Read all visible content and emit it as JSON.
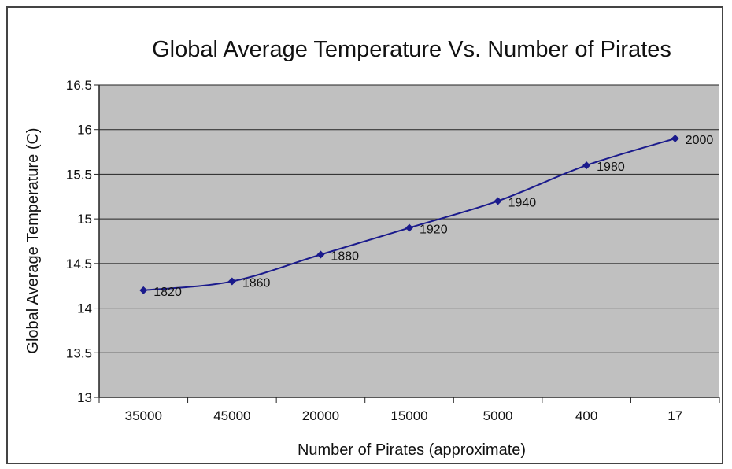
{
  "chart_data": {
    "type": "line",
    "title": "Global Average Temperature Vs. Number of Pirates",
    "xlabel": "Number of Pirates (approximate)",
    "ylabel": "Global Average Temperature (C)",
    "categories": [
      "35000",
      "45000",
      "20000",
      "15000",
      "5000",
      "400",
      "17"
    ],
    "series": [
      {
        "values": [
          14.2,
          14.3,
          14.6,
          14.9,
          15.2,
          15.6,
          15.9
        ],
        "point_labels": [
          "1820",
          "1860",
          "1880",
          "1920",
          "1940",
          "1980",
          "2000"
        ],
        "color": "#1a1a8c"
      }
    ],
    "ylim": [
      13,
      16.5
    ],
    "yticks": [
      "13",
      "13.5",
      "14",
      "14.5",
      "15",
      "15.5",
      "16",
      "16.5"
    ],
    "grid": true,
    "plot_background": "#c0c0c0",
    "legend": "none"
  }
}
